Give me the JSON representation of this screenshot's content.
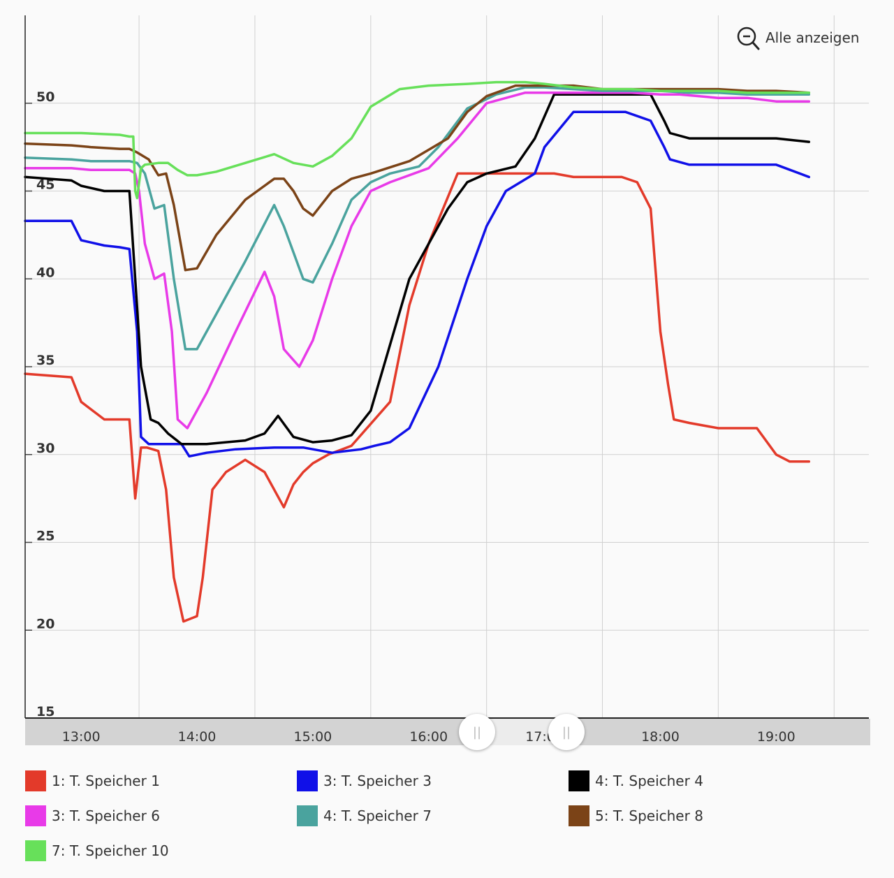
{
  "zoom": {
    "label": "Alle anzeigen",
    "icon": "zoom-out-icon"
  },
  "chart_data": {
    "type": "line",
    "title": "",
    "xlabel": "",
    "ylabel": "",
    "ylim": [
      15,
      55
    ],
    "xlim": [
      "12:31",
      "19:48"
    ],
    "yticks": [
      15,
      20,
      25,
      30,
      35,
      40,
      45,
      50
    ],
    "xticks": [
      "13:00",
      "14:00",
      "15:00",
      "16:00",
      "17:00",
      "18:00",
      "19:00"
    ],
    "grid": true,
    "legend_position": "bottom",
    "series": [
      {
        "name": "1: T. Speicher 1",
        "color": "#e33a2a",
        "x": [
          "12:31",
          "12:55",
          "13:00",
          "13:12",
          "13:20",
          "13:25",
          "13:28",
          "13:31",
          "13:34",
          "13:40",
          "13:44",
          "13:48",
          "13:53",
          "14:00",
          "14:03",
          "14:08",
          "14:15",
          "14:25",
          "14:35",
          "14:45",
          "14:50",
          "14:55",
          "15:00",
          "15:08",
          "15:20",
          "15:40",
          "15:50",
          "16:00",
          "16:15",
          "16:30",
          "16:45",
          "16:55",
          "17:00",
          "17:05",
          "17:15",
          "17:30",
          "17:40",
          "17:48",
          "17:55",
          "18:00",
          "18:04",
          "18:07",
          "18:15",
          "18:30",
          "18:40",
          "18:50",
          "19:00",
          "19:07",
          "19:13",
          "19:17"
        ],
        "y": [
          34.6,
          34.4,
          33,
          32,
          32,
          32,
          27.5,
          30.4,
          30.4,
          30.2,
          28,
          23,
          20.5,
          20.8,
          23,
          28,
          29,
          29.7,
          29,
          27,
          28.3,
          29,
          29.5,
          30,
          30.5,
          33,
          38.5,
          42,
          46,
          46,
          46,
          46,
          46,
          46,
          45.8,
          45.8,
          45.8,
          45.5,
          44,
          37,
          34,
          32,
          31.8,
          31.5,
          31.5,
          31.5,
          30,
          29.6,
          29.6,
          29.6
        ]
      },
      {
        "name": "3: T. Speicher 3",
        "color": "#1010e8",
        "x": [
          "12:31",
          "12:55",
          "13:00",
          "13:12",
          "13:20",
          "13:25",
          "13:29",
          "13:31",
          "13:35",
          "13:45",
          "13:52",
          "13:56",
          "14:05",
          "14:20",
          "14:40",
          "14:55",
          "15:10",
          "15:25",
          "15:32",
          "15:40",
          "15:50",
          "16:05",
          "16:20",
          "16:30",
          "16:40",
          "16:55",
          "17:00",
          "17:15",
          "17:30",
          "17:42",
          "17:55",
          "18:02",
          "18:05",
          "18:15",
          "18:30",
          "18:45",
          "18:57",
          "19:00",
          "19:17"
        ],
        "y": [
          43.3,
          43.3,
          42.2,
          41.9,
          41.8,
          41.7,
          37,
          31,
          30.6,
          30.6,
          30.6,
          29.9,
          30.1,
          30.3,
          30.4,
          30.4,
          30.1,
          30.3,
          30.5,
          30.7,
          31.5,
          35,
          40,
          43,
          45,
          46,
          47.5,
          49.5,
          49.5,
          49.5,
          49,
          47.5,
          46.8,
          46.5,
          46.5,
          46.5,
          46.5,
          46.5,
          45.8
        ]
      },
      {
        "name": "4: T. Speicher 4",
        "color": "#000000",
        "x": [
          "12:31",
          "12:55",
          "13:00",
          "13:12",
          "13:20",
          "13:25",
          "13:28",
          "13:31",
          "13:36",
          "13:40",
          "13:45",
          "13:52",
          "14:05",
          "14:25",
          "14:35",
          "14:42",
          "14:50",
          "15:00",
          "15:10",
          "15:20",
          "15:30",
          "15:50",
          "16:10",
          "16:20",
          "16:30",
          "16:45",
          "16:55",
          "17:05",
          "17:15",
          "17:30",
          "17:40",
          "17:55",
          "18:02",
          "18:05",
          "18:15",
          "18:30",
          "18:45",
          "19:00",
          "19:17"
        ],
        "y": [
          45.8,
          45.6,
          45.3,
          45,
          45,
          45,
          40,
          35,
          32,
          31.8,
          31.2,
          30.6,
          30.6,
          30.8,
          31.2,
          32.2,
          31,
          30.7,
          30.8,
          31.1,
          32.5,
          40,
          44,
          45.5,
          46,
          46.4,
          48,
          50.5,
          50.5,
          50.5,
          50.5,
          50.5,
          49,
          48.3,
          48,
          48,
          48,
          48,
          47.8
        ]
      },
      {
        "name": "3: T. Speicher 6",
        "color": "#e83ae8",
        "x": [
          "12:31",
          "12:55",
          "13:05",
          "13:20",
          "13:25",
          "13:28",
          "13:30",
          "13:33",
          "13:38",
          "13:43",
          "13:47",
          "13:50",
          "13:55",
          "14:05",
          "14:20",
          "14:35",
          "14:40",
          "14:45",
          "14:53",
          "15:00",
          "15:10",
          "15:20",
          "15:30",
          "15:40",
          "16:00",
          "16:15",
          "16:30",
          "16:50",
          "17:00",
          "17:15",
          "17:30",
          "17:45",
          "18:00",
          "18:10",
          "18:30",
          "18:45",
          "19:00",
          "19:17"
        ],
        "y": [
          46.3,
          46.3,
          46.2,
          46.2,
          46.2,
          46,
          45,
          42,
          40,
          40.3,
          37,
          32,
          31.5,
          33.5,
          37,
          40.4,
          39,
          36,
          35,
          36.5,
          40,
          43,
          45,
          45.5,
          46.3,
          48,
          50,
          50.6,
          50.6,
          50.6,
          50.6,
          50.6,
          50.5,
          50.5,
          50.3,
          50.3,
          50.1,
          50.1
        ]
      },
      {
        "name": "4: T. Speicher 7",
        "color": "#4aa39e",
        "x": [
          "12:31",
          "12:55",
          "13:05",
          "13:20",
          "13:25",
          "13:29",
          "13:33",
          "13:38",
          "13:43",
          "13:48",
          "13:54",
          "14:00",
          "14:10",
          "14:25",
          "14:40",
          "14:45",
          "14:55",
          "15:00",
          "15:10",
          "15:20",
          "15:30",
          "15:40",
          "15:55",
          "16:05",
          "16:20",
          "16:35",
          "16:50",
          "17:00",
          "17:15",
          "17:30",
          "17:45",
          "18:00",
          "18:15",
          "18:30",
          "18:45",
          "19:00",
          "19:17"
        ],
        "y": [
          46.9,
          46.8,
          46.7,
          46.7,
          46.7,
          46.6,
          46,
          44,
          44.2,
          40,
          36,
          36,
          38,
          41,
          44.2,
          43,
          40,
          39.8,
          42,
          44.5,
          45.5,
          46,
          46.4,
          47.5,
          49.7,
          50.5,
          50.9,
          50.9,
          50.8,
          50.7,
          50.7,
          50.7,
          50.6,
          50.6,
          50.5,
          50.5,
          50.5
        ]
      },
      {
        "name": "5: T. Speicher 8",
        "color": "#7b4317",
        "x": [
          "12:31",
          "12:55",
          "13:05",
          "13:20",
          "13:25",
          "13:29",
          "13:35",
          "13:40",
          "13:44",
          "13:48",
          "13:54",
          "14:00",
          "14:10",
          "14:25",
          "14:40",
          "14:45",
          "14:50",
          "14:55",
          "15:00",
          "15:10",
          "15:20",
          "15:30",
          "15:50",
          "16:10",
          "16:20",
          "16:30",
          "16:45",
          "17:00",
          "17:15",
          "17:30",
          "17:45",
          "18:00",
          "18:15",
          "18:30",
          "18:45",
          "19:00",
          "19:17"
        ],
        "y": [
          47.7,
          47.6,
          47.5,
          47.4,
          47.4,
          47.2,
          46.8,
          45.9,
          46,
          44.2,
          40.5,
          40.6,
          42.5,
          44.5,
          45.7,
          45.7,
          45,
          44,
          43.6,
          45,
          45.7,
          46,
          46.7,
          48,
          49.5,
          50.4,
          51,
          51,
          51,
          50.8,
          50.8,
          50.8,
          50.8,
          50.8,
          50.7,
          50.7,
          50.6
        ]
      },
      {
        "name": "7: T. Speicher 10",
        "color": "#67e05a",
        "x": [
          "12:31",
          "12:55",
          "13:00",
          "13:20",
          "13:25",
          "13:27",
          "13:28",
          "13:29",
          "13:31",
          "13:33",
          "13:40",
          "13:45",
          "13:50",
          "13:55",
          "14:00",
          "14:10",
          "14:25",
          "14:40",
          "14:50",
          "15:00",
          "15:10",
          "15:20",
          "15:30",
          "15:45",
          "16:00",
          "16:20",
          "16:35",
          "16:50",
          "17:00",
          "17:15",
          "17:30",
          "17:45",
          "18:00",
          "18:15",
          "18:30",
          "18:45",
          "19:00",
          "19:17"
        ],
        "y": [
          48.3,
          48.3,
          48.3,
          48.2,
          48.1,
          48.1,
          45,
          44.6,
          46.3,
          46.5,
          46.6,
          46.6,
          46.2,
          45.9,
          45.9,
          46.1,
          46.6,
          47.1,
          46.6,
          46.4,
          47,
          48,
          49.8,
          50.8,
          51,
          51.1,
          51.2,
          51.2,
          51.1,
          50.9,
          50.8,
          50.8,
          50.7,
          50.7,
          50.7,
          50.6,
          50.6,
          50.6
        ]
      }
    ]
  }
}
